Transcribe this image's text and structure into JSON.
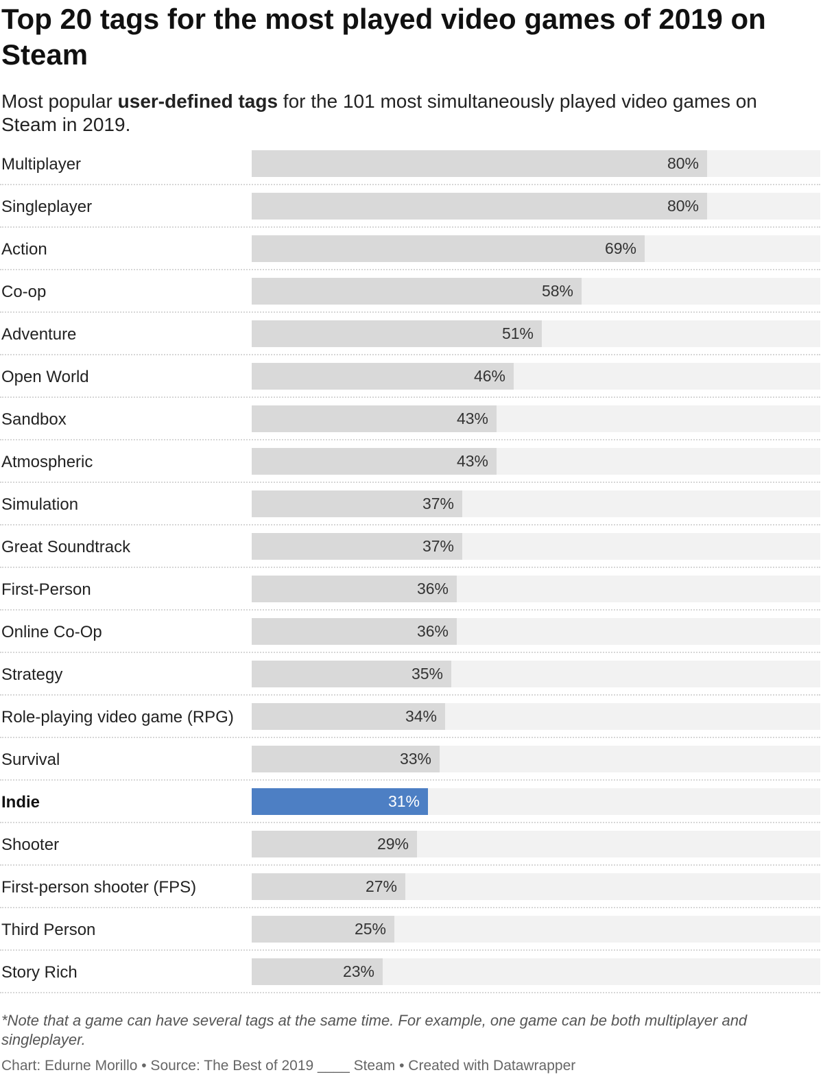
{
  "title_line": "Top 20 tags for the most played video games of 2019 on Steam",
  "subtitle": {
    "pre": "Most popular ",
    "bold": "user-defined tags",
    "post": " for the 101 most simultaneously played video games on Steam in 2019."
  },
  "note": "*Note that a game can have several tags at the same time. For example, one game can be both multiplayer and singleplayer.",
  "footer": "Chart: Edurne Morillo • Source: The Best of 2019 ____ Steam • Created with Datawrapper",
  "colors": {
    "bar": "#d9d9d9",
    "highlight": "#4d7fc4",
    "track": "#f2f2f2"
  },
  "chart_data": {
    "type": "bar",
    "orientation": "horizontal",
    "unit": "%",
    "xlim": [
      0,
      100
    ],
    "highlight": "Indie",
    "categories": [
      "Multiplayer",
      "Singleplayer",
      "Action",
      "Co-op",
      "Adventure",
      "Open World",
      "Sandbox",
      "Atmospheric",
      "Simulation",
      "Great Soundtrack",
      "First-Person",
      "Online Co-Op",
      "Strategy",
      "Role-playing video game (RPG)",
      "Survival",
      "Indie",
      "Shooter",
      "First-person shooter (FPS)",
      "Third Person",
      "Story Rich"
    ],
    "values": [
      80,
      80,
      69,
      58,
      51,
      46,
      43,
      43,
      37,
      37,
      36,
      36,
      35,
      34,
      33,
      31,
      29,
      27,
      25,
      23
    ]
  }
}
